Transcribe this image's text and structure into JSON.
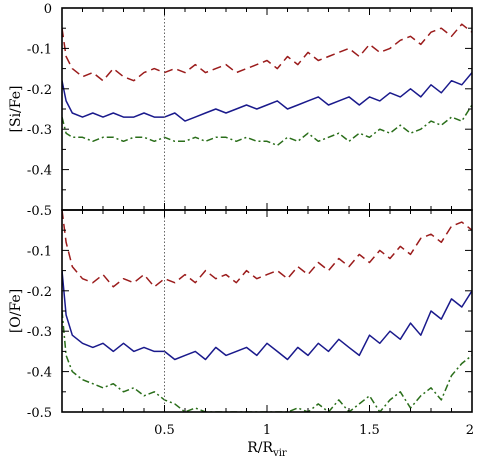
{
  "chart_data": [
    {
      "type": "line",
      "panel": "top",
      "ylabel": "[Si/Fe]",
      "xlim": [
        0,
        2
      ],
      "ylim": [
        -0.5,
        0
      ],
      "yticks": [
        "0",
        "-0.1",
        "-0.2",
        "-0.3",
        "-0.4",
        "-0.5"
      ],
      "yticks_values": [
        0,
        -0.1,
        -0.2,
        -0.3,
        -0.4,
        -0.5
      ],
      "vline_x": 0.5,
      "colors": {
        "dashed": "#9b1c1c",
        "solid": "#1a1a8c",
        "dashdot": "#2a6e1a"
      },
      "series": [
        {
          "style": "dashed",
          "x": [
            0.0,
            0.02,
            0.05,
            0.1,
            0.15,
            0.2,
            0.25,
            0.3,
            0.35,
            0.4,
            0.45,
            0.5,
            0.55,
            0.6,
            0.65,
            0.7,
            0.75,
            0.8,
            0.85,
            0.9,
            0.95,
            1.0,
            1.05,
            1.1,
            1.15,
            1.2,
            1.25,
            1.3,
            1.35,
            1.4,
            1.45,
            1.5,
            1.55,
            1.6,
            1.65,
            1.7,
            1.75,
            1.8,
            1.85,
            1.9,
            1.95,
            2.0
          ],
          "y": [
            -0.05,
            -0.12,
            -0.15,
            -0.17,
            -0.16,
            -0.18,
            -0.15,
            -0.17,
            -0.18,
            -0.16,
            -0.15,
            -0.16,
            -0.15,
            -0.16,
            -0.14,
            -0.16,
            -0.15,
            -0.14,
            -0.16,
            -0.15,
            -0.14,
            -0.13,
            -0.15,
            -0.12,
            -0.14,
            -0.11,
            -0.13,
            -0.12,
            -0.11,
            -0.1,
            -0.12,
            -0.09,
            -0.11,
            -0.1,
            -0.08,
            -0.07,
            -0.09,
            -0.06,
            -0.05,
            -0.07,
            -0.04,
            -0.06
          ]
        },
        {
          "style": "solid",
          "x": [
            0.0,
            0.02,
            0.05,
            0.1,
            0.15,
            0.2,
            0.25,
            0.3,
            0.35,
            0.4,
            0.45,
            0.5,
            0.55,
            0.6,
            0.65,
            0.7,
            0.75,
            0.8,
            0.85,
            0.9,
            0.95,
            1.0,
            1.05,
            1.1,
            1.15,
            1.2,
            1.25,
            1.3,
            1.35,
            1.4,
            1.45,
            1.5,
            1.55,
            1.6,
            1.65,
            1.7,
            1.75,
            1.8,
            1.85,
            1.9,
            1.95,
            2.0
          ],
          "y": [
            -0.18,
            -0.23,
            -0.26,
            -0.27,
            -0.26,
            -0.27,
            -0.26,
            -0.27,
            -0.27,
            -0.26,
            -0.27,
            -0.27,
            -0.26,
            -0.28,
            -0.27,
            -0.26,
            -0.25,
            -0.26,
            -0.25,
            -0.24,
            -0.25,
            -0.24,
            -0.23,
            -0.25,
            -0.24,
            -0.23,
            -0.22,
            -0.24,
            -0.23,
            -0.22,
            -0.24,
            -0.22,
            -0.23,
            -0.21,
            -0.22,
            -0.2,
            -0.22,
            -0.19,
            -0.21,
            -0.18,
            -0.19,
            -0.16
          ]
        },
        {
          "style": "dashdot",
          "x": [
            0.0,
            0.02,
            0.05,
            0.1,
            0.15,
            0.2,
            0.25,
            0.3,
            0.35,
            0.4,
            0.45,
            0.5,
            0.55,
            0.6,
            0.65,
            0.7,
            0.75,
            0.8,
            0.85,
            0.9,
            0.95,
            1.0,
            1.05,
            1.1,
            1.15,
            1.2,
            1.25,
            1.3,
            1.35,
            1.4,
            1.45,
            1.5,
            1.55,
            1.6,
            1.65,
            1.7,
            1.75,
            1.8,
            1.85,
            1.9,
            1.95,
            2.0
          ],
          "y": [
            -0.27,
            -0.31,
            -0.32,
            -0.32,
            -0.33,
            -0.32,
            -0.32,
            -0.33,
            -0.32,
            -0.32,
            -0.33,
            -0.32,
            -0.33,
            -0.33,
            -0.32,
            -0.33,
            -0.32,
            -0.32,
            -0.33,
            -0.32,
            -0.33,
            -0.33,
            -0.34,
            -0.32,
            -0.33,
            -0.31,
            -0.33,
            -0.32,
            -0.31,
            -0.33,
            -0.31,
            -0.32,
            -0.3,
            -0.31,
            -0.29,
            -0.31,
            -0.3,
            -0.28,
            -0.29,
            -0.27,
            -0.28,
            -0.24
          ]
        }
      ]
    },
    {
      "type": "line",
      "panel": "bottom",
      "ylabel": "[O/Fe]",
      "xlabel_base": "R/R",
      "xlabel_sub": "vir",
      "xlim": [
        0,
        2
      ],
      "ylim": [
        -0.5,
        0
      ],
      "xticks": [
        "0.5",
        "1",
        "1.5",
        "2"
      ],
      "xticks_values": [
        0.5,
        1,
        1.5,
        2
      ],
      "yticks": [
        "-0.1",
        "-0.2",
        "-0.3",
        "-0.4",
        "-0.5"
      ],
      "yticks_values": [
        -0.1,
        -0.2,
        -0.3,
        -0.4,
        -0.5
      ],
      "vline_x": 0.5,
      "colors": {
        "dashed": "#9b1c1c",
        "solid": "#1a1a8c",
        "dashdot": "#2a6e1a"
      },
      "series": [
        {
          "style": "dashed",
          "x": [
            0.0,
            0.02,
            0.05,
            0.1,
            0.15,
            0.2,
            0.25,
            0.3,
            0.35,
            0.4,
            0.45,
            0.5,
            0.55,
            0.6,
            0.65,
            0.7,
            0.75,
            0.8,
            0.85,
            0.9,
            0.95,
            1.0,
            1.05,
            1.1,
            1.15,
            1.2,
            1.25,
            1.3,
            1.35,
            1.4,
            1.45,
            1.5,
            1.55,
            1.6,
            1.65,
            1.7,
            1.75,
            1.8,
            1.85,
            1.9,
            1.95,
            2.0
          ],
          "y": [
            0.0,
            -0.08,
            -0.14,
            -0.17,
            -0.18,
            -0.16,
            -0.19,
            -0.17,
            -0.18,
            -0.16,
            -0.19,
            -0.17,
            -0.18,
            -0.16,
            -0.18,
            -0.15,
            -0.17,
            -0.16,
            -0.18,
            -0.15,
            -0.17,
            -0.16,
            -0.15,
            -0.17,
            -0.14,
            -0.16,
            -0.13,
            -0.15,
            -0.12,
            -0.14,
            -0.11,
            -0.13,
            -0.1,
            -0.12,
            -0.09,
            -0.11,
            -0.07,
            -0.06,
            -0.08,
            -0.04,
            -0.03,
            -0.05
          ]
        },
        {
          "style": "solid",
          "x": [
            0.0,
            0.02,
            0.05,
            0.1,
            0.15,
            0.2,
            0.25,
            0.3,
            0.35,
            0.4,
            0.45,
            0.5,
            0.55,
            0.6,
            0.65,
            0.7,
            0.75,
            0.8,
            0.85,
            0.9,
            0.95,
            1.0,
            1.05,
            1.1,
            1.15,
            1.2,
            1.25,
            1.3,
            1.35,
            1.4,
            1.45,
            1.5,
            1.55,
            1.6,
            1.65,
            1.7,
            1.75,
            1.8,
            1.85,
            1.9,
            1.95,
            2.0
          ],
          "y": [
            -0.15,
            -0.26,
            -0.31,
            -0.33,
            -0.34,
            -0.33,
            -0.35,
            -0.33,
            -0.35,
            -0.34,
            -0.35,
            -0.35,
            -0.37,
            -0.36,
            -0.35,
            -0.37,
            -0.34,
            -0.36,
            -0.35,
            -0.34,
            -0.36,
            -0.33,
            -0.35,
            -0.37,
            -0.34,
            -0.36,
            -0.33,
            -0.35,
            -0.32,
            -0.34,
            -0.36,
            -0.31,
            -0.33,
            -0.3,
            -0.32,
            -0.28,
            -0.31,
            -0.25,
            -0.27,
            -0.22,
            -0.24,
            -0.2
          ]
        },
        {
          "style": "dashdot",
          "x": [
            0.0,
            0.02,
            0.05,
            0.1,
            0.15,
            0.2,
            0.25,
            0.3,
            0.35,
            0.4,
            0.45,
            0.5,
            0.55,
            0.6,
            0.65,
            0.7,
            0.75,
            0.8,
            0.85,
            0.9,
            0.95,
            1.0,
            1.05,
            1.1,
            1.15,
            1.2,
            1.25,
            1.3,
            1.35,
            1.4,
            1.45,
            1.5,
            1.55,
            1.6,
            1.65,
            1.7,
            1.75,
            1.8,
            1.85,
            1.9,
            1.95,
            2.0
          ],
          "y": [
            -0.25,
            -0.36,
            -0.4,
            -0.42,
            -0.43,
            -0.44,
            -0.43,
            -0.45,
            -0.44,
            -0.46,
            -0.45,
            -0.47,
            -0.48,
            -0.5,
            -0.49,
            -0.5,
            -0.5,
            -0.5,
            -0.5,
            -0.5,
            -0.5,
            -0.5,
            -0.5,
            -0.5,
            -0.49,
            -0.5,
            -0.48,
            -0.5,
            -0.47,
            -0.5,
            -0.48,
            -0.46,
            -0.5,
            -0.47,
            -0.45,
            -0.49,
            -0.46,
            -0.44,
            -0.47,
            -0.41,
            -0.38,
            -0.36
          ]
        }
      ]
    }
  ]
}
